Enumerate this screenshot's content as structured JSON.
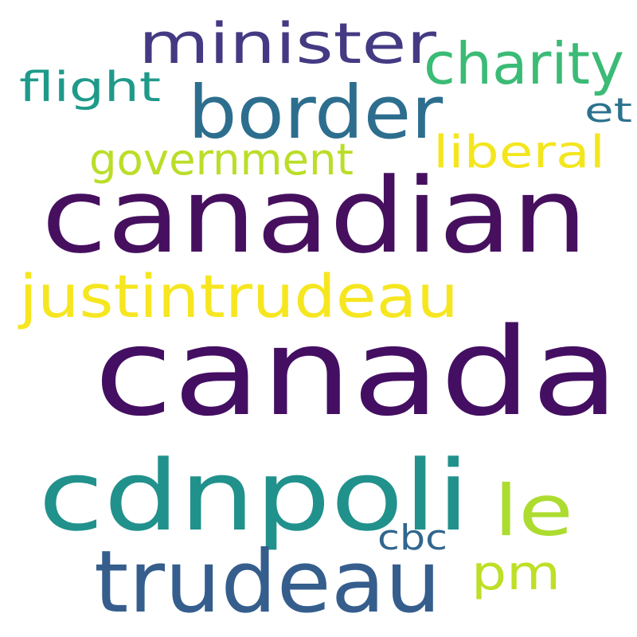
{
  "words": [
    {
      "id": "canada",
      "text": "canada",
      "color": "#440f62"
    },
    {
      "id": "canadian",
      "text": "canadian",
      "color": "#46105f"
    },
    {
      "id": "cdnpoli",
      "text": "cdnpoli",
      "color": "#21918c"
    },
    {
      "id": "trudeau",
      "text": "trudeau",
      "color": "#355e8d"
    },
    {
      "id": "border",
      "text": "border",
      "color": "#2d6e8e"
    },
    {
      "id": "minister",
      "text": "minister",
      "color": "#443a83"
    },
    {
      "id": "justintrudeau",
      "text": "justintrudeau",
      "color": "#f6e620"
    },
    {
      "id": "le",
      "text": "le",
      "color": "#addc30"
    },
    {
      "id": "charity",
      "text": "charity",
      "color": "#3bbb75"
    },
    {
      "id": "government",
      "text": "government",
      "color": "#bade28"
    },
    {
      "id": "pm",
      "text": "pm",
      "color": "#bddf26"
    },
    {
      "id": "liberal",
      "text": "liberal",
      "color": "#f4e61e"
    },
    {
      "id": "flight",
      "text": "flight",
      "color": "#1f9a8a"
    },
    {
      "id": "cbc",
      "text": "cbc",
      "color": "#31668e"
    },
    {
      "id": "et",
      "text": "et",
      "color": "#2c728e"
    }
  ]
}
